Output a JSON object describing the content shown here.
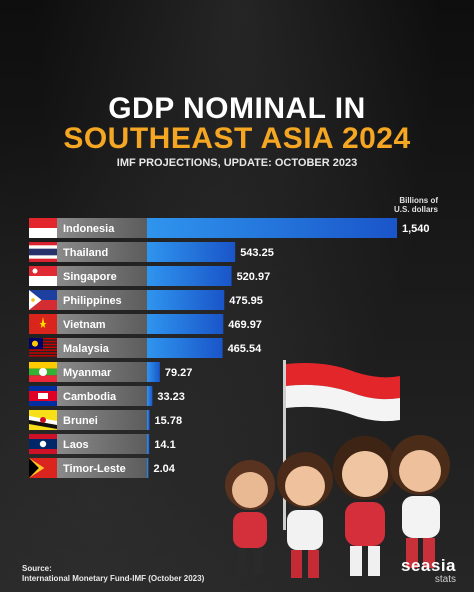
{
  "header": {
    "title_line1": "GDP NOMINAL IN",
    "title_line2": "SOUTHEAST ASIA 2024",
    "subtitle": "IMF PROJECTIONS, UPDATE: OCTOBER 2023",
    "unit_line1": "Billions of",
    "unit_line2": "U.S. dollars"
  },
  "colors": {
    "title_accent": "#f5a623",
    "bar": "#1e73d6",
    "label_box": "#7a7a7a"
  },
  "chart_data": {
    "type": "bar",
    "orientation": "horizontal",
    "title": "GDP NOMINAL IN SOUTHEAST ASIA 2024",
    "subtitle": "IMF PROJECTIONS, UPDATE: OCTOBER 2023",
    "value_unit": "Billions of U.S. dollars",
    "categories": [
      "Indonesia",
      "Thailand",
      "Singapore",
      "Philippines",
      "Vietnam",
      "Malaysia",
      "Myanmar",
      "Cambodia",
      "Brunei",
      "Laos",
      "Timor-Leste"
    ],
    "values": [
      1540,
      543.25,
      520.97,
      475.95,
      469.97,
      465.54,
      79.27,
      33.23,
      15.78,
      14.1,
      2.04
    ],
    "value_labels": [
      "1,540",
      "543.25",
      "520.97",
      "475.95",
      "469.97",
      "465.54",
      "79.27",
      "33.23",
      "15.78",
      "14.1",
      "2.04"
    ],
    "flag_icons": [
      "flag-indonesia-icon",
      "flag-thailand-icon",
      "flag-singapore-icon",
      "flag-philippines-icon",
      "flag-vietnam-icon",
      "flag-malaysia-icon",
      "flag-myanmar-icon",
      "flag-cambodia-icon",
      "flag-brunei-icon",
      "flag-laos-icon",
      "flag-timor-leste-icon"
    ],
    "grid": false,
    "legend": "none"
  },
  "footer": {
    "source_label": "Source:",
    "source_text": "International Monetary Fund-IMF (October 2023)",
    "brand_name": "seasia",
    "brand_sub": "stats"
  }
}
